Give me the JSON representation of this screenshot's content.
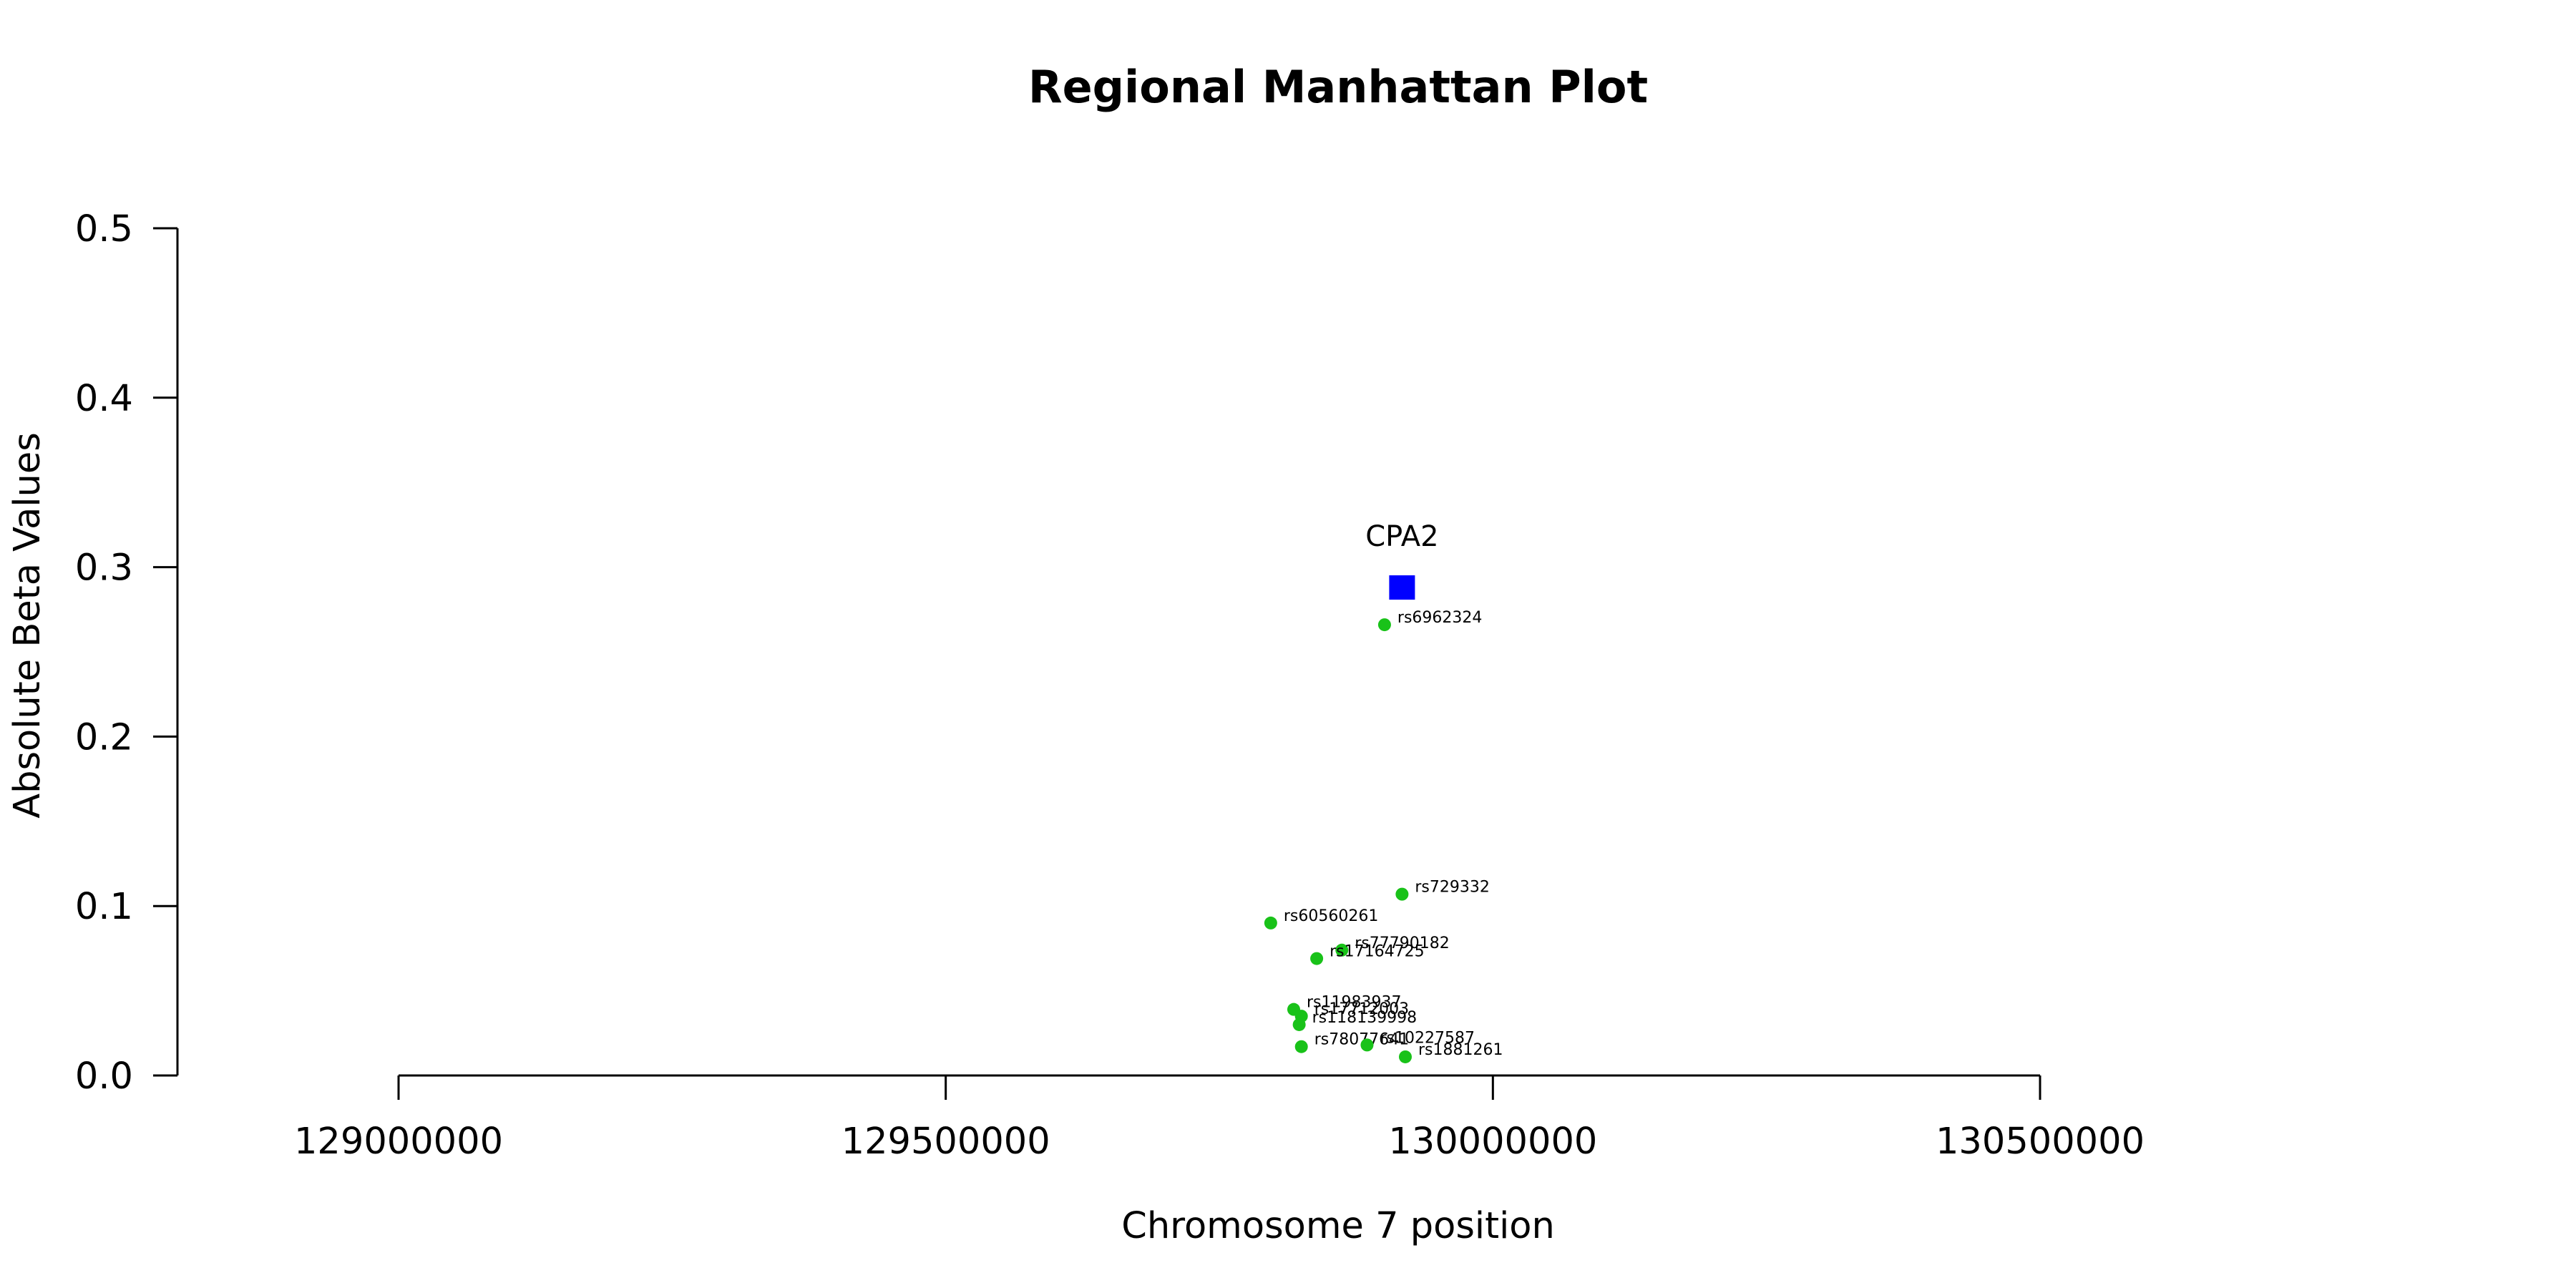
{
  "chart_data": {
    "type": "scatter",
    "title": "Regional Manhattan Plot",
    "xlabel": "Chromosome 7 position",
    "ylabel": "Absolute Beta Values",
    "xlim": [
      128800000,
      130950000
    ],
    "ylim": [
      0,
      0.5
    ],
    "x_ticks": [
      129000000,
      129500000,
      130000000,
      130500000
    ],
    "x_tick_labels": [
      "129000000",
      "129500000",
      "130000000",
      "130500000"
    ],
    "y_ticks": [
      0,
      0.1,
      0.2,
      0.3,
      0.4,
      0.5
    ],
    "y_tick_labels": [
      "0.0",
      "0.1",
      "0.2",
      "0.3",
      "0.4",
      "0.5"
    ],
    "grid": false,
    "legend": "none",
    "colors": {
      "snp": "#19c219",
      "gene": "#0000ff",
      "axis": "#000000"
    },
    "gene": {
      "name": "CPA2",
      "x": 129917000,
      "y": 0.288,
      "marker": "square"
    },
    "snps": [
      {
        "id": "rs6962324",
        "x": 129901000,
        "y": 0.266
      },
      {
        "id": "rs729332",
        "x": 129917000,
        "y": 0.107
      },
      {
        "id": "rs60560261",
        "x": 129797000,
        "y": 0.09
      },
      {
        "id": "rs77790182",
        "x": 129862000,
        "y": 0.074
      },
      {
        "id": "rs17164725",
        "x": 129839000,
        "y": 0.069
      },
      {
        "id": "rs11983937",
        "x": 129818000,
        "y": 0.039
      },
      {
        "id": "rs17712003",
        "x": 129825000,
        "y": 0.035
      },
      {
        "id": "rs118139998",
        "x": 129823000,
        "y": 0.03
      },
      {
        "id": "rs78077641",
        "x": 129825000,
        "y": 0.017
      },
      {
        "id": "rs10227587",
        "x": 129885000,
        "y": 0.018
      },
      {
        "id": "rs1881261",
        "x": 129920000,
        "y": 0.011
      }
    ]
  }
}
